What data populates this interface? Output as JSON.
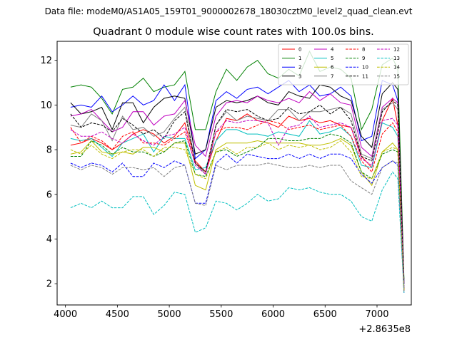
{
  "chart_data": {
    "type": "line",
    "suptitle": "Data file: modeM0/AS1A05_159T01_9000002678_18030cztM0_level2_quad_clean.evt",
    "title": "Quadrant 0 module wise count rates with 100.0s bins.",
    "xlabel": "",
    "ylabel": "",
    "offset_text": "+2.8635e8",
    "xlim": [
      3920,
      7330
    ],
    "ylim": [
      1.05,
      12.85
    ],
    "xticks": [
      4000,
      4500,
      5000,
      5500,
      6000,
      6500,
      7000
    ],
    "xtick_labels": [
      "4000",
      "4500",
      "5000",
      "5500",
      "6000",
      "6500",
      "7000"
    ],
    "yticks": [
      2,
      4,
      6,
      8,
      10,
      12
    ],
    "ytick_labels": [
      "2",
      "4",
      "6",
      "8",
      "10",
      "12"
    ],
    "legend_location": "top-right",
    "x": [
      4050,
      4150,
      4250,
      4350,
      4450,
      4550,
      4650,
      4750,
      4850,
      4950,
      5050,
      5150,
      5250,
      5350,
      5450,
      5550,
      5650,
      5750,
      5850,
      5950,
      6050,
      6150,
      6250,
      6350,
      6450,
      6550,
      6650,
      6750,
      6850,
      6950,
      7050,
      7150,
      7200,
      7260
    ],
    "series": [
      {
        "name": "0",
        "color": "#ff0000",
        "dash": "solid",
        "values": [
          8.2,
          8.3,
          8.5,
          8.3,
          8.0,
          8.3,
          8.7,
          8.9,
          8.7,
          8.3,
          8.6,
          9.2,
          7.5,
          7.0,
          8.4,
          9.4,
          9.3,
          9.6,
          9.3,
          9.2,
          9.0,
          9.5,
          9.3,
          9.4,
          9.2,
          9.3,
          9.1,
          9.0,
          7.7,
          7.2,
          9.3,
          10.3,
          9.1,
          1.7
        ]
      },
      {
        "name": "1",
        "color": "#008000",
        "dash": "solid",
        "values": [
          10.8,
          10.9,
          10.8,
          10.3,
          9.6,
          10.7,
          10.8,
          11.2,
          10.6,
          10.8,
          10.9,
          11.5,
          8.9,
          8.9,
          10.6,
          11.6,
          11.1,
          11.7,
          12.0,
          11.4,
          11.2,
          11.6,
          11.3,
          12.4,
          11.5,
          11.7,
          11.6,
          11.2,
          8.9,
          9.8,
          11.8,
          12.1,
          11.6,
          2.2
        ]
      },
      {
        "name": "2",
        "color": "#0000ff",
        "dash": "solid",
        "values": [
          9.9,
          10.0,
          9.9,
          10.4,
          9.7,
          10.0,
          10.4,
          10.0,
          10.2,
          10.9,
          10.2,
          10.9,
          7.6,
          8.0,
          10.2,
          10.6,
          10.3,
          10.7,
          10.8,
          10.5,
          10.8,
          11.1,
          10.6,
          10.9,
          10.4,
          10.5,
          10.8,
          10.4,
          8.4,
          8.6,
          11.1,
          10.9,
          10.2,
          2.0
        ]
      },
      {
        "name": "3",
        "color": "#000000",
        "dash": "solid",
        "values": [
          10.1,
          9.6,
          9.7,
          9.9,
          8.9,
          10.1,
          10.1,
          9.2,
          9.9,
          10.3,
          10.4,
          10.3,
          7.8,
          8.0,
          9.9,
          10.2,
          10.1,
          10.2,
          10.4,
          10.1,
          10.0,
          10.6,
          10.4,
          10.3,
          10.9,
          10.8,
          10.4,
          10.2,
          8.6,
          8.1,
          10.5,
          11.0,
          10.7,
          2.1
        ]
      },
      {
        "name": "4",
        "color": "#c000c0",
        "dash": "solid",
        "values": [
          9.5,
          9.6,
          9.8,
          9.3,
          8.8,
          9.0,
          9.7,
          9.7,
          9.1,
          9.5,
          9.6,
          10.2,
          8.2,
          7.7,
          9.5,
          10.1,
          10.2,
          10.1,
          10.4,
          10.2,
          10.1,
          10.3,
          10.1,
          10.6,
          10.2,
          10.5,
          10.1,
          10.0,
          8.1,
          7.7,
          9.9,
          10.3,
          10.1,
          2.0
        ]
      },
      {
        "name": "5",
        "color": "#00bfbf",
        "dash": "solid",
        "values": [
          8.5,
          8.4,
          8.5,
          8.1,
          7.7,
          8.3,
          8.5,
          8.7,
          7.9,
          8.6,
          8.5,
          8.5,
          7.1,
          7.2,
          8.4,
          8.9,
          8.9,
          8.7,
          8.7,
          8.6,
          8.8,
          8.7,
          8.6,
          9.3,
          8.7,
          8.8,
          9.0,
          8.6,
          7.3,
          7.2,
          9.2,
          9.0,
          8.6,
          1.8
        ]
      },
      {
        "name": "6",
        "color": "#bfbf00",
        "dash": "solid",
        "values": [
          7.8,
          7.9,
          8.4,
          7.9,
          7.8,
          7.9,
          7.8,
          8.1,
          8.1,
          7.9,
          8.3,
          8.3,
          6.4,
          6.2,
          8.0,
          8.3,
          8.3,
          8.3,
          8.4,
          8.3,
          8.3,
          8.3,
          8.3,
          8.2,
          8.2,
          8.3,
          8.5,
          8.2,
          7.0,
          6.4,
          7.9,
          8.3,
          8.0,
          1.7
        ]
      },
      {
        "name": "7",
        "color": "#808080",
        "dash": "solid",
        "values": [
          9.1,
          9.0,
          9.6,
          9.3,
          8.4,
          9.5,
          8.9,
          9.0,
          8.6,
          8.8,
          9.4,
          9.9,
          7.4,
          6.9,
          9.1,
          9.7,
          9.3,
          9.5,
          9.4,
          9.3,
          9.8,
          9.8,
          9.3,
          9.7,
          9.7,
          9.8,
          9.9,
          9.6,
          7.8,
          7.6,
          9.8,
          10.1,
          9.8,
          2.0
        ]
      },
      {
        "name": "8",
        "color": "#ff0000",
        "dash": "dashed",
        "values": [
          9.0,
          8.3,
          8.6,
          8.4,
          8.0,
          8.6,
          8.8,
          8.3,
          8.3,
          8.2,
          8.5,
          8.8,
          7.4,
          7.0,
          8.8,
          9.0,
          9.0,
          8.9,
          9.1,
          9.3,
          9.2,
          8.9,
          9.0,
          9.1,
          8.9,
          9.0,
          9.1,
          8.6,
          7.5,
          7.0,
          8.7,
          9.2,
          8.8,
          1.7
        ]
      },
      {
        "name": "9",
        "color": "#008000",
        "dash": "dashed",
        "values": [
          7.7,
          7.7,
          8.4,
          8.2,
          7.8,
          8.1,
          7.9,
          7.9,
          7.7,
          7.9,
          8.3,
          8.4,
          6.9,
          6.8,
          7.9,
          8.0,
          7.7,
          7.9,
          8.1,
          8.5,
          8.5,
          8.4,
          8.4,
          8.5,
          8.5,
          8.7,
          8.6,
          8.3,
          7.0,
          6.7,
          7.8,
          8.0,
          7.9,
          1.7
        ]
      },
      {
        "name": "10",
        "color": "#0000ff",
        "dash": "dashed",
        "values": [
          7.4,
          7.2,
          7.4,
          7.3,
          7.0,
          7.4,
          6.8,
          6.8,
          7.4,
          7.2,
          7.5,
          7.3,
          5.6,
          5.6,
          7.4,
          7.8,
          7.4,
          7.8,
          7.7,
          7.6,
          7.6,
          7.8,
          7.6,
          7.8,
          7.6,
          7.8,
          7.8,
          7.6,
          6.9,
          6.5,
          7.2,
          7.5,
          7.3,
          1.6
        ]
      },
      {
        "name": "11",
        "color": "#000000",
        "dash": "dashed",
        "values": [
          9.6,
          9.0,
          9.2,
          9.1,
          8.8,
          9.4,
          9.1,
          8.7,
          8.9,
          8.5,
          9.3,
          9.7,
          7.4,
          7.0,
          9.1,
          9.8,
          9.7,
          9.8,
          9.5,
          9.3,
          9.4,
          9.9,
          9.6,
          9.7,
          10.0,
          9.6,
          9.9,
          9.3,
          7.7,
          7.5,
          9.7,
          10.2,
          10.0,
          1.9
        ]
      },
      {
        "name": "12",
        "color": "#c000c0",
        "dash": "dashed",
        "values": [
          8.9,
          8.6,
          8.6,
          8.8,
          8.5,
          8.3,
          8.7,
          8.4,
          8.2,
          8.6,
          8.7,
          9.0,
          7.3,
          6.9,
          8.8,
          9.3,
          9.2,
          9.3,
          9.3,
          9.2,
          8.2,
          9.0,
          9.1,
          9.5,
          9.0,
          9.1,
          9.2,
          9.0,
          7.6,
          7.3,
          9.3,
          9.4,
          9.1,
          1.8
        ]
      },
      {
        "name": "13",
        "color": "#00bfbf",
        "dash": "dashed",
        "values": [
          5.4,
          5.6,
          5.4,
          5.7,
          5.4,
          5.4,
          5.9,
          5.9,
          5.1,
          5.5,
          6.1,
          6.0,
          4.3,
          4.5,
          5.7,
          5.6,
          5.3,
          5.6,
          6.0,
          5.7,
          5.8,
          6.3,
          6.2,
          6.3,
          6.1,
          6.0,
          6.0,
          5.7,
          5.0,
          4.8,
          6.2,
          7.0,
          6.7,
          1.6
        ]
      },
      {
        "name": "14",
        "color": "#bfbf00",
        "dash": "dashed",
        "values": [
          8.0,
          7.8,
          8.2,
          7.8,
          7.6,
          7.9,
          8.0,
          8.0,
          7.7,
          8.1,
          8.1,
          8.0,
          6.9,
          6.7,
          7.9,
          8.1,
          7.8,
          8.1,
          8.1,
          8.3,
          8.0,
          8.2,
          8.1,
          8.2,
          8.0,
          8.1,
          8.4,
          7.9,
          6.8,
          6.7,
          7.9,
          8.1,
          8.0,
          1.7
        ]
      },
      {
        "name": "15",
        "color": "#808080",
        "dash": "dashed",
        "values": [
          7.3,
          7.1,
          7.3,
          7.2,
          6.9,
          7.2,
          7.2,
          7.1,
          7.2,
          6.8,
          7.2,
          7.3,
          5.6,
          5.5,
          7.3,
          7.1,
          7.3,
          7.3,
          7.3,
          7.4,
          7.3,
          7.2,
          7.2,
          7.3,
          7.2,
          7.3,
          7.3,
          6.6,
          6.3,
          6.0,
          7.2,
          7.5,
          7.4,
          1.6
        ]
      }
    ]
  }
}
